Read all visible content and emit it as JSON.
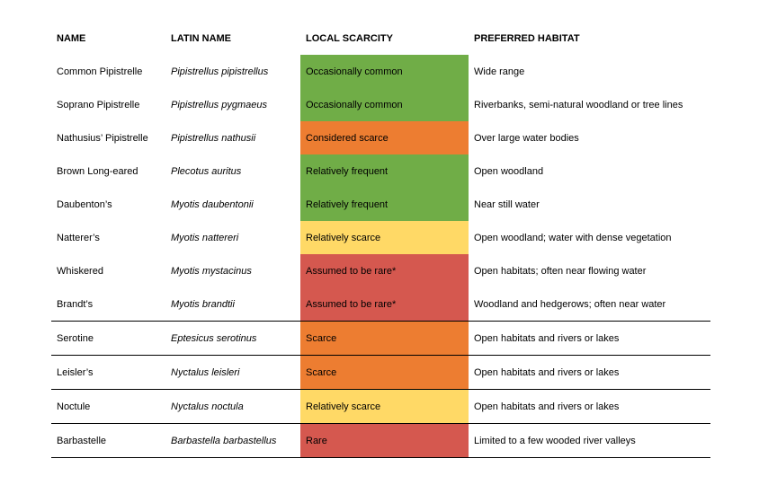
{
  "headers": [
    "NAME",
    "LATIN NAME",
    "LOCAL SCARCITY",
    "PREFERRED HABITAT"
  ],
  "colors": {
    "green": "#70ad47",
    "orange": "#ed7d31",
    "yellow": "#ffd966",
    "red": "#d5584f"
  },
  "rows": [
    {
      "name": "Common Pipistrelle",
      "latin": "Pipistrellus pipistrellus",
      "scarcity": "Occasionally common",
      "color": "green",
      "habitat": "Wide range"
    },
    {
      "name": "Soprano Pipistrelle",
      "latin": "Pipistrellus pygmaeus",
      "scarcity": "Occasionally common",
      "color": "green",
      "habitat": "Riverbanks, semi-natural woodland or tree lines"
    },
    {
      "name": "Nathusius’ Pipistrelle",
      "latin": "Pipistrellus nathusii",
      "scarcity": "Considered scarce",
      "color": "orange",
      "habitat": "Over large water bodies"
    },
    {
      "name": "Brown Long-eared",
      "latin": "Plecotus auritus",
      "scarcity": "Relatively frequent",
      "color": "green",
      "habitat": "Open woodland"
    },
    {
      "name": "Daubenton’s",
      "latin": "Myotis daubentonii",
      "scarcity": "Relatively frequent",
      "color": "green",
      "habitat": "Near still water"
    },
    {
      "name": "Natterer’s",
      "latin": "Myotis nattereri",
      "scarcity": "Relatively scarce",
      "color": "yellow",
      "habitat": "Open woodland; water with dense vegetation"
    },
    {
      "name": "Whiskered",
      "latin": "Myotis mystacinus",
      "scarcity": "Assumed to be rare*",
      "color": "red",
      "habitat": "Open habitats; often near flowing water"
    },
    {
      "name": "Brandt’s",
      "latin": "Myotis brandtii",
      "scarcity": "Assumed to be rare*",
      "color": "red",
      "habitat": "Woodland and hedgerows; often near water"
    },
    {
      "name": "Serotine",
      "latin": "Eptesicus serotinus",
      "scarcity": "Scarce",
      "color": "orange",
      "habitat": "Open habitats and rivers or lakes"
    },
    {
      "name": "Leisler’s",
      "latin": "Nyctalus leisleri",
      "scarcity": "Scarce",
      "color": "orange",
      "habitat": "Open habitats and rivers or lakes"
    },
    {
      "name": "Noctule",
      "latin": "Nyctalus noctula",
      "scarcity": "Relatively scarce",
      "color": "yellow",
      "habitat": "Open habitats and rivers or lakes"
    },
    {
      "name": "Barbastelle",
      "latin": "Barbastella barbastellus",
      "scarcity": "Rare",
      "color": "red",
      "habitat": "Limited to a few wooded river valleys"
    }
  ]
}
